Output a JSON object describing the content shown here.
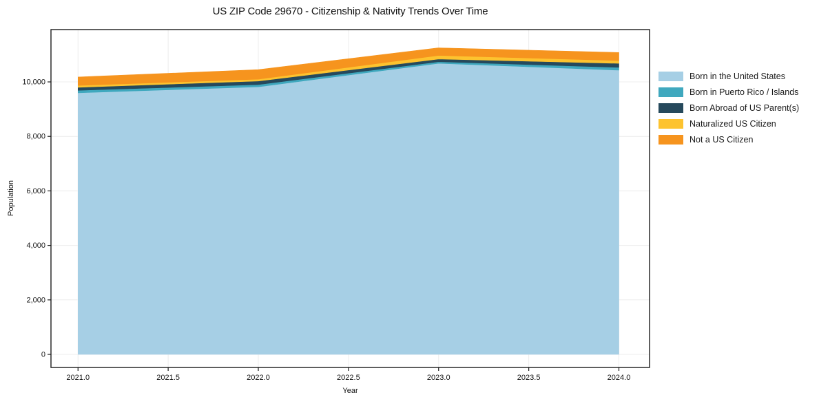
{
  "title": "US ZIP Code 29670 - Citizenship & Nativity Trends Over Time",
  "axes": {
    "x_label": "Year",
    "y_label": "Population"
  },
  "colors": {
    "frame": "#1a1a1a",
    "grid": "#ececec",
    "tick_text": "#111111",
    "background": "#ffffff"
  },
  "chart_data": {
    "type": "area",
    "stacked": true,
    "title": "US ZIP Code 29670 - Citizenship & Nativity Trends Over Time",
    "xlabel": "Year",
    "ylabel": "Population",
    "x": [
      2021,
      2022,
      2023,
      2024
    ],
    "series": [
      {
        "name": "Born in the United States",
        "color": "#A6CFE5",
        "values": [
          9600,
          9820,
          10680,
          10430
        ]
      },
      {
        "name": "Born in Puerto Rico / Islands",
        "color": "#3FA8BE",
        "values": [
          90,
          80,
          60,
          100
        ]
      },
      {
        "name": "Born Abroad of US Parent(s)",
        "color": "#26495C",
        "values": [
          110,
          130,
          100,
          150
        ]
      },
      {
        "name": "Naturalized US Citizen",
        "color": "#FDC32F",
        "values": [
          70,
          70,
          130,
          100
        ]
      },
      {
        "name": "Not a US Citizen",
        "color": "#F6941E",
        "values": [
          310,
          350,
          280,
          300
        ]
      }
    ],
    "x_ticks": [
      2021.0,
      2021.5,
      2022.0,
      2022.5,
      2023.0,
      2023.5,
      2024.0
    ],
    "x_tick_labels": [
      "2021.0",
      "2021.5",
      "2022.0",
      "2022.5",
      "2023.0",
      "2023.5",
      "2024.0"
    ],
    "y_ticks": [
      0,
      2000,
      4000,
      6000,
      8000,
      10000
    ],
    "y_tick_labels": [
      "0",
      "2,000",
      "4,000",
      "6,000",
      "8,000",
      "10,000"
    ],
    "xlim": [
      2020.85,
      2024.17
    ],
    "ylim": [
      -480,
      11920
    ],
    "grid": true,
    "legend_position": "right"
  }
}
